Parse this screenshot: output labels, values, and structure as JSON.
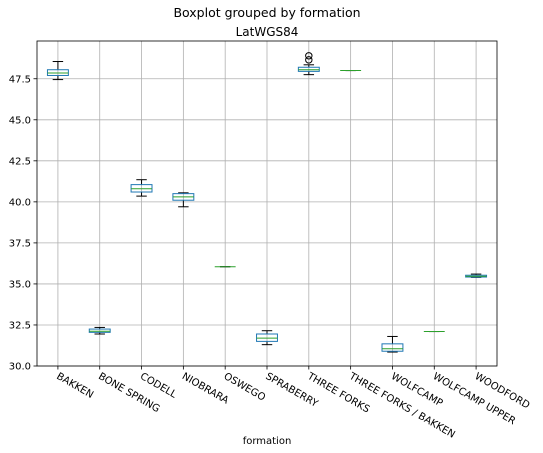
{
  "chart_data": {
    "type": "box",
    "suptitle": "Boxplot grouped by formation",
    "title": "LatWGS84",
    "xlabel": "formation",
    "ylabel": "",
    "ylim": [
      30.0,
      49.8
    ],
    "grid": true,
    "legend": "none",
    "yticks": [
      30.0,
      32.5,
      35.0,
      37.5,
      40.0,
      42.5,
      45.0,
      47.5
    ],
    "ytick_labels": [
      "30.0",
      "32.5",
      "35.0",
      "37.5",
      "40.0",
      "42.5",
      "45.0",
      "47.5"
    ],
    "categories": [
      "BAKKEN",
      "BONE SPRING",
      "CODELL",
      "NIOBRARA",
      "OSWEGO",
      "SPRABERRY",
      "THREE FORKS",
      "THREE FORKS / BAKKEN",
      "WOLFCAMP",
      "WOLFCAMP UPPER",
      "WOODFORD"
    ],
    "boxes": [
      {
        "whisker_low": 47.45,
        "q1": 47.7,
        "median": 47.85,
        "q3": 48.05,
        "whisker_high": 48.55,
        "fliers": []
      },
      {
        "whisker_low": 31.95,
        "q1": 32.05,
        "median": 32.12,
        "q3": 32.25,
        "whisker_high": 32.35,
        "fliers": []
      },
      {
        "whisker_low": 40.35,
        "q1": 40.6,
        "median": 40.8,
        "q3": 41.05,
        "whisker_high": 41.35,
        "fliers": []
      },
      {
        "whisker_low": 39.7,
        "q1": 40.1,
        "median": 40.3,
        "q3": 40.5,
        "whisker_high": 40.55,
        "fliers": []
      },
      {
        "whisker_low": 36.05,
        "q1": 36.05,
        "median": 36.05,
        "q3": 36.05,
        "whisker_high": 36.05,
        "fliers": []
      },
      {
        "whisker_low": 31.3,
        "q1": 31.5,
        "median": 31.7,
        "q3": 31.95,
        "whisker_high": 32.15,
        "fliers": []
      },
      {
        "whisker_low": 47.75,
        "q1": 47.95,
        "median": 48.05,
        "q3": 48.2,
        "whisker_high": 48.35,
        "fliers": [
          48.65,
          48.9
        ]
      },
      {
        "whisker_low": 48.0,
        "q1": 48.0,
        "median": 48.0,
        "q3": 48.0,
        "whisker_high": 48.0,
        "fliers": []
      },
      {
        "whisker_low": 30.85,
        "q1": 30.9,
        "median": 31.05,
        "q3": 31.35,
        "whisker_high": 31.8,
        "fliers": []
      },
      {
        "whisker_low": 32.1,
        "q1": 32.1,
        "median": 32.1,
        "q3": 32.1,
        "whisker_high": 32.1,
        "fliers": []
      },
      {
        "whisker_low": 35.4,
        "q1": 35.42,
        "median": 35.47,
        "q3": 35.53,
        "whisker_high": 35.6,
        "fliers": []
      }
    ]
  },
  "colors": {
    "box": "#1f77b4",
    "whisker": "#000000",
    "median": "#2ca02c",
    "grid": "#b0b0b0",
    "flier": "#000000"
  }
}
